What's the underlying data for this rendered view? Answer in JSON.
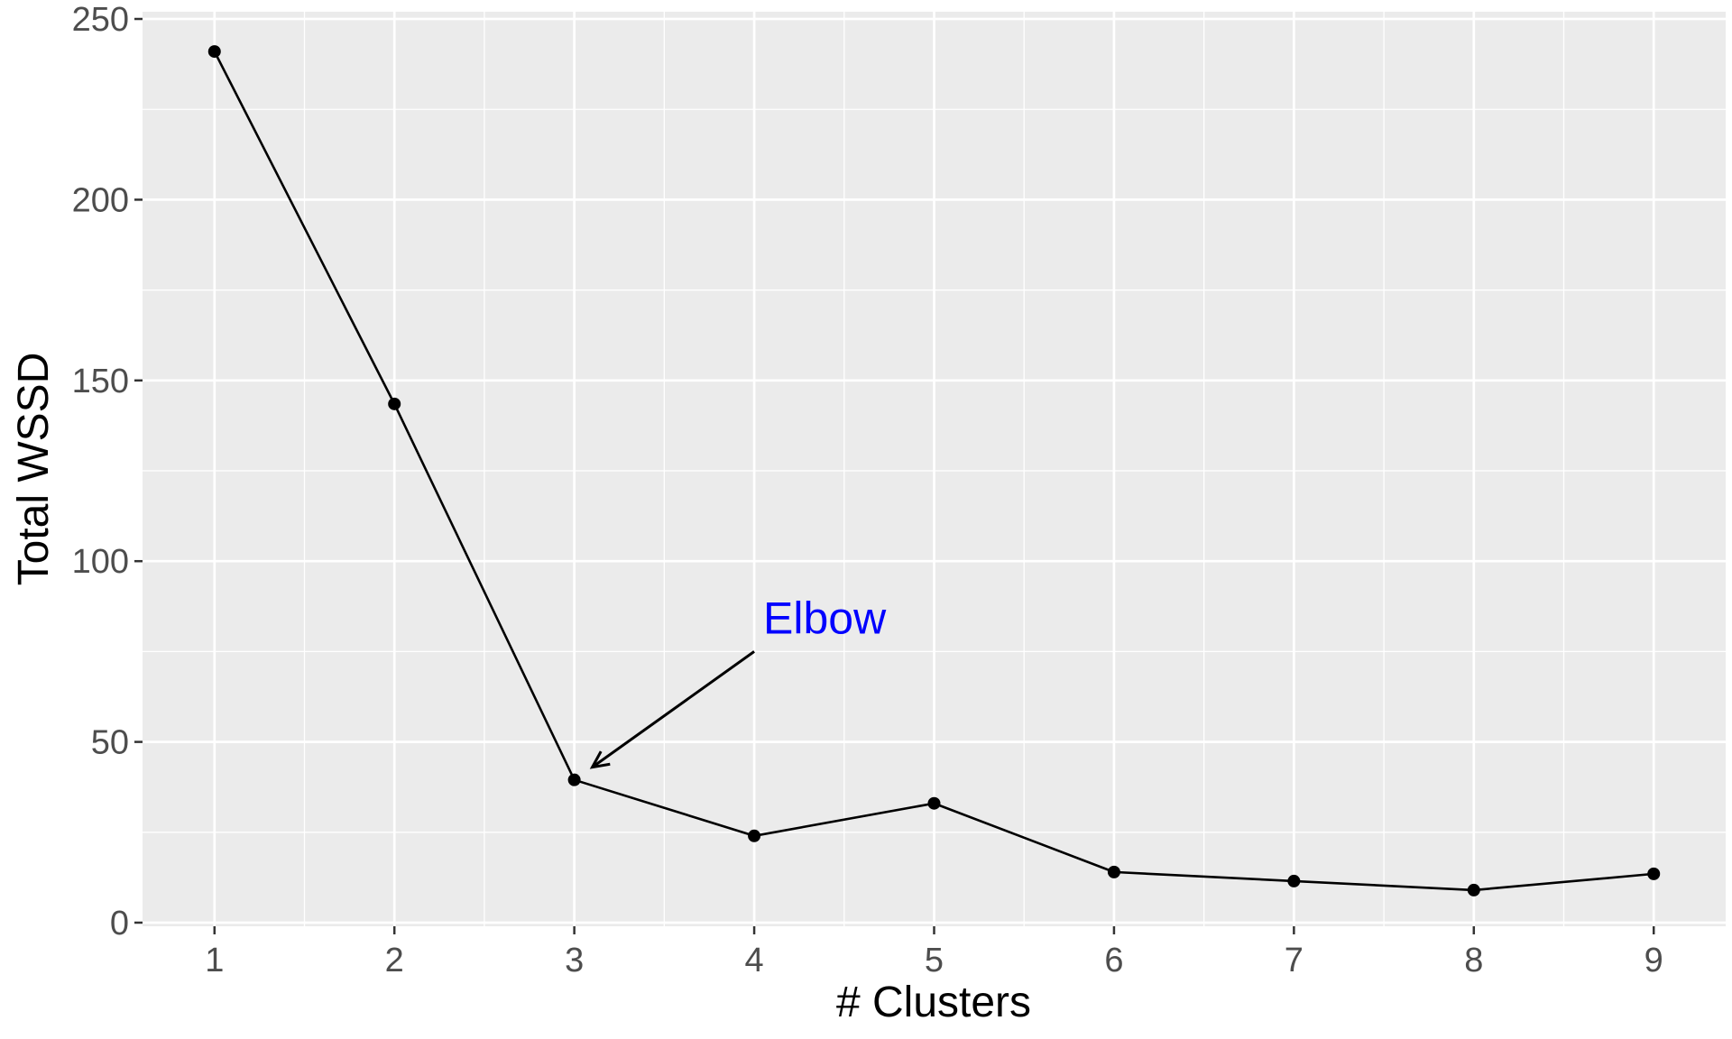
{
  "chart_data": {
    "type": "line",
    "title": "",
    "xlabel": "# Clusters",
    "ylabel": "Total WSSD",
    "x": [
      1,
      2,
      3,
      4,
      5,
      6,
      7,
      8,
      9
    ],
    "series": [
      {
        "values": [
          241,
          143.5,
          39.5,
          24,
          33,
          14,
          11.5,
          9,
          13.5
        ],
        "color": "#000000",
        "markers": true
      }
    ],
    "xticks": [
      1,
      2,
      3,
      4,
      5,
      6,
      7,
      8,
      9
    ],
    "xtick_labels": [
      "1",
      "2",
      "3",
      "4",
      "5",
      "6",
      "7",
      "8",
      "9"
    ],
    "yticks": [
      0,
      50,
      100,
      150,
      200,
      250
    ],
    "ytick_labels": [
      "0",
      "50",
      "100",
      "150",
      "200",
      "250"
    ],
    "xlim": [
      0.6,
      9.4
    ],
    "ylim": [
      -1,
      252
    ],
    "grid": true,
    "panel_color": "#ebebeb",
    "grid_color": "#ffffff",
    "annotation": {
      "text": "Elbow",
      "text_x": 4.05,
      "text_y": 80,
      "arrow_from": [
        4,
        75
      ],
      "arrow_to": [
        3.1,
        43
      ],
      "color": "#0000ff"
    }
  }
}
